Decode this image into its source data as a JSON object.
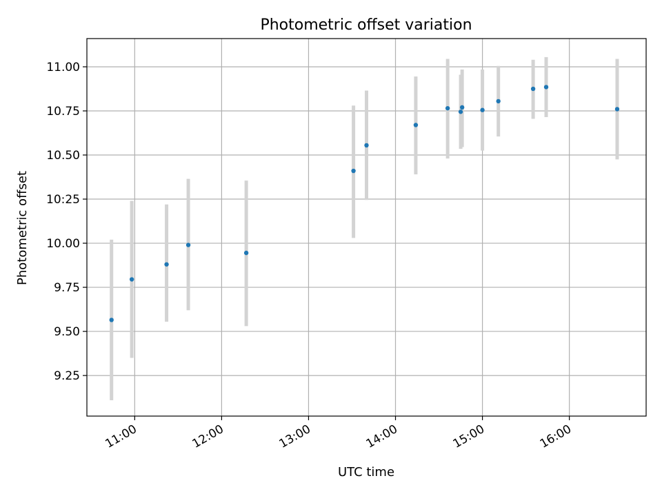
{
  "chart_data": {
    "type": "scatter",
    "title": "Photometric offset variation",
    "xlabel": "UTC time",
    "ylabel": "Photometric offset",
    "x_axis_kind": "time-of-day",
    "xlim": [
      "10:27",
      "16:53"
    ],
    "ylim": [
      9.02,
      11.16
    ],
    "grid": true,
    "x_ticks": [
      "11:00",
      "12:00",
      "13:00",
      "14:00",
      "15:00",
      "16:00"
    ],
    "y_ticks": [
      "9.25",
      "9.50",
      "9.75",
      "10.00",
      "10:25",
      "10.50",
      "10.75",
      "11.00"
    ],
    "colors": {
      "point": "#1f77b4",
      "errorbar": "#d3d3d3",
      "grid": "#b0b0b0",
      "axes": "#000000"
    },
    "series": [
      {
        "points": [
          {
            "x": "10:44",
            "y": 9.565,
            "y_low": 9.11,
            "y_high": 10.02
          },
          {
            "x": "10:58",
            "y": 9.795,
            "y_low": 9.35,
            "y_high": 10.24
          },
          {
            "x": "11:22",
            "y": 9.88,
            "y_low": 9.555,
            "y_high": 10.22
          },
          {
            "x": "11:37",
            "y": 9.99,
            "y_low": 9.62,
            "y_high": 10.365
          },
          {
            "x": "12:17",
            "y": 9.945,
            "y_low": 9.53,
            "y_high": 10.355
          },
          {
            "x": "13:31",
            "y": 10.41,
            "y_low": 10.03,
            "y_high": 10.78
          },
          {
            "x": "13:40",
            "y": 10.555,
            "y_low": 10.245,
            "y_high": 10.865
          },
          {
            "x": "14:14",
            "y": 10.67,
            "y_low": 10.39,
            "y_high": 10.945
          },
          {
            "x": "14:36",
            "y": 10.765,
            "y_low": 10.48,
            "y_high": 11.045
          },
          {
            "x": "14:45",
            "y": 10.745,
            "y_low": 10.535,
            "y_high": 10.955
          },
          {
            "x": "14:46",
            "y": 10.77,
            "y_low": 10.545,
            "y_high": 10.985
          },
          {
            "x": "15:00",
            "y": 10.755,
            "y_low": 10.525,
            "y_high": 10.985
          },
          {
            "x": "15:11",
            "y": 10.805,
            "y_low": 10.605,
            "y_high": 11.005
          },
          {
            "x": "15:35",
            "y": 10.875,
            "y_low": 10.705,
            "y_high": 11.04
          },
          {
            "x": "15:44",
            "y": 10.885,
            "y_low": 10.715,
            "y_high": 11.055
          },
          {
            "x": "16:33",
            "y": 10.76,
            "y_low": 10.475,
            "y_high": 11.045
          }
        ]
      }
    ]
  }
}
